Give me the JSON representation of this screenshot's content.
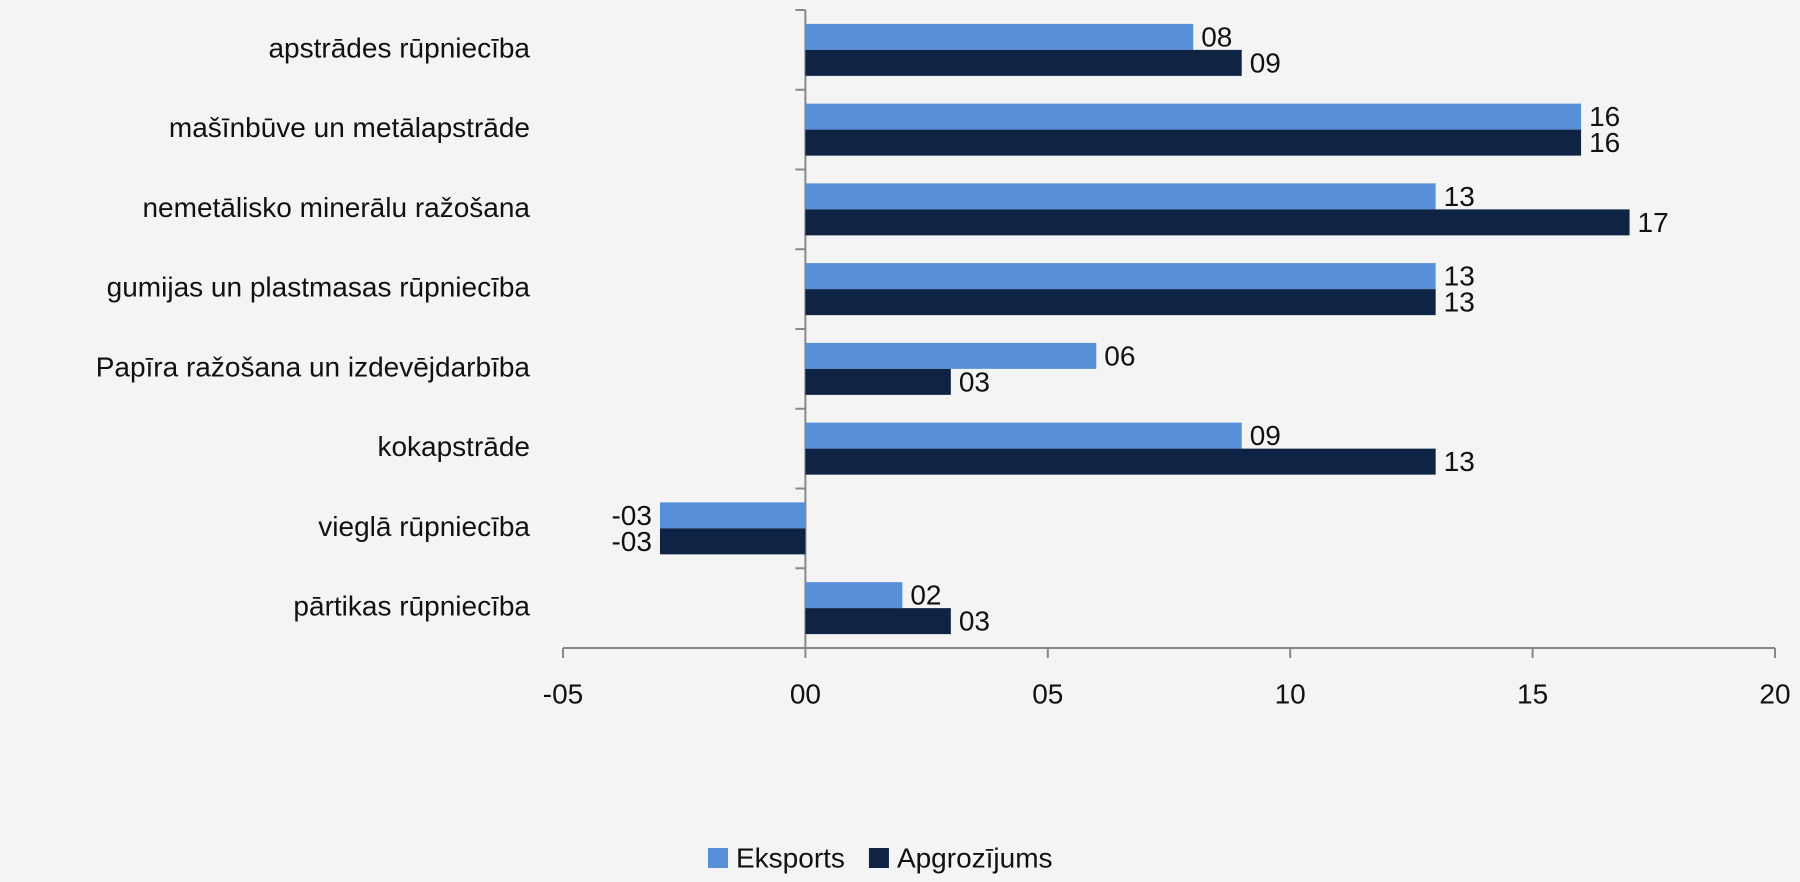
{
  "chart_data": {
    "type": "hbar",
    "categories": [
      "apstrādes rūpniecība",
      "mašīnbūve un metālapstrāde",
      "nemetālisko minerālu ražošana",
      "gumijas un plastmasas rūpniecība",
      "Papīra ražošana un izdevējdarbība",
      "kokapstrāde",
      "vieglā rūpniecība",
      "pārtikas rūpniecība"
    ],
    "series": [
      {
        "name": "Eksports",
        "color": "#5790d8",
        "values": [
          0.8,
          1.6,
          1.3,
          1.3,
          0.6,
          0.9,
          -0.3,
          0.2
        ],
        "value_labels": [
          "08",
          "16",
          "13",
          "13",
          "06",
          "09",
          "-03",
          "02"
        ]
      },
      {
        "name": "Apgrozījums",
        "color": "#0f2444",
        "values": [
          0.9,
          1.6,
          1.7,
          1.3,
          0.3,
          1.3,
          -0.3,
          0.3
        ],
        "value_labels": [
          "09",
          "16",
          "17",
          "13",
          "03",
          "13",
          "-03",
          "03"
        ]
      }
    ],
    "xlim": [
      -0.5,
      2.0
    ],
    "xticks": [
      {
        "value": -0.5,
        "label": "-05"
      },
      {
        "value": 0,
        "label": "00"
      },
      {
        "value": 0.5,
        "label": "05"
      },
      {
        "value": 1.0,
        "label": "10"
      },
      {
        "value": 1.5,
        "label": "15"
      },
      {
        "value": 2.0,
        "label": "20"
      }
    ],
    "legend": "bottom"
  }
}
